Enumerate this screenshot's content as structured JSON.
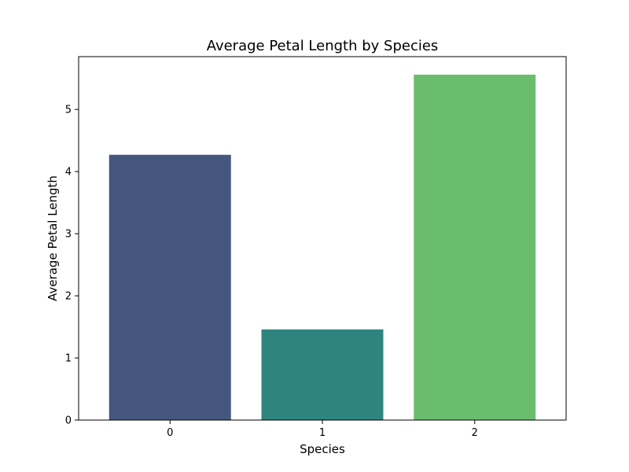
{
  "chart_data": {
    "type": "bar",
    "title": "Average Petal Length by Species",
    "xlabel": "Species",
    "ylabel": "Average Petal Length",
    "categories": [
      "0",
      "1",
      "2"
    ],
    "values": [
      4.27,
      1.46,
      5.56
    ],
    "colors": [
      "#46577f",
      "#2e847e",
      "#6bbd6e"
    ],
    "ylim": [
      0,
      5.85
    ],
    "yticks": [
      0,
      1,
      2,
      3,
      4,
      5
    ],
    "grid": false,
    "legend": "none"
  }
}
